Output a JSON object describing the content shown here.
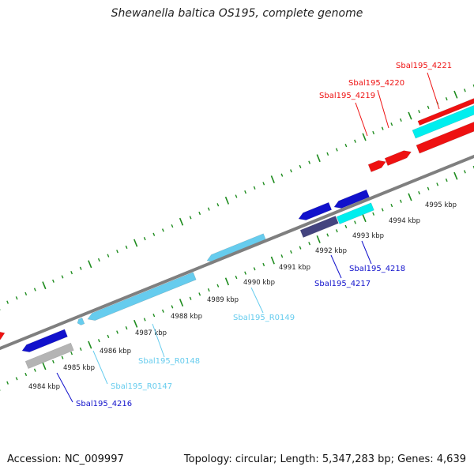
{
  "title": "Shewanella baltica OS195, complete genome",
  "footer": {
    "accession": "Accession: NC_009997",
    "summary": "Topology: circular; Length: 5,347,283 bp; Genes: 4,639"
  },
  "colors": {
    "backbone": "#7f7f7f",
    "tick": "#1e8c1e",
    "cds_forward": "#ee1111",
    "cds_reverse": "#1111cc",
    "rna_forward": "#00eeee",
    "rna_reverse": "#66ccee",
    "pseudo": "#44447f",
    "other": "#b4b4b4"
  },
  "ruler": {
    "ticks": [
      {
        "label": "4984 kbp"
      },
      {
        "label": "4985 kbp"
      },
      {
        "label": "4986 kbp"
      },
      {
        "label": "4987 kbp"
      },
      {
        "label": "4988 kbp"
      },
      {
        "label": "4989 kbp"
      },
      {
        "label": "4990 kbp"
      },
      {
        "label": "4991 kbp"
      },
      {
        "label": "4992 kbp"
      },
      {
        "label": "4993 kbp"
      },
      {
        "label": "4994 kbp"
      },
      {
        "label": "4995 kbp"
      }
    ]
  },
  "features": [
    {
      "name": "Sbal195_4216",
      "kind": "cds_reverse"
    },
    {
      "name": "Sbal195_R0147",
      "kind": "rna_reverse"
    },
    {
      "name": "Sbal195_R0148",
      "kind": "rna_reverse"
    },
    {
      "name": "Sbal195_R0149",
      "kind": "rna_reverse"
    },
    {
      "name": "Sbal195_4217",
      "kind": "cds_reverse"
    },
    {
      "name": "Sbal195_4218",
      "kind": "cds_reverse"
    },
    {
      "name": "Sbal195_4219",
      "kind": "cds_forward"
    },
    {
      "name": "Sbal195_4220",
      "kind": "cds_forward"
    },
    {
      "name": "Sbal195_4221",
      "kind": "cds_forward"
    }
  ]
}
